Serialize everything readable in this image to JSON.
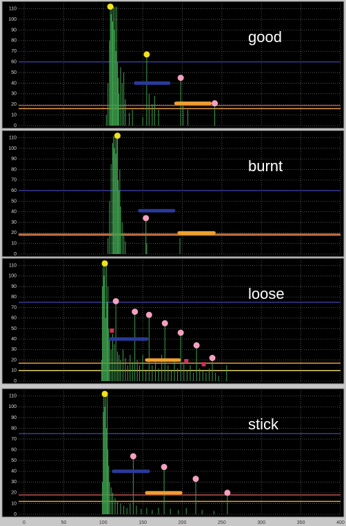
{
  "chart_data": [
    {
      "type": "stem",
      "label": "good",
      "xlim": [
        0,
        400
      ],
      "ylim": [
        0,
        115
      ],
      "xticks": [
        0,
        50,
        100,
        150,
        200,
        250,
        300,
        350,
        400
      ],
      "yticks": [
        0,
        10,
        20,
        30,
        40,
        50,
        60,
        70,
        80,
        90,
        100,
        110
      ],
      "grid": true,
      "spectrum": {
        "color": "#3fa24f",
        "x": [
          104,
          106,
          108,
          109,
          110,
          111,
          112,
          113,
          114,
          115,
          116,
          117,
          118,
          119,
          120,
          122,
          124,
          126,
          128,
          133,
          137,
          150,
          155,
          158,
          162,
          165,
          170,
          198,
          201,
          207,
          241
        ],
        "values": [
          10,
          40,
          80,
          112,
          105,
          112,
          98,
          112,
          90,
          112,
          70,
          112,
          60,
          45,
          30,
          55,
          40,
          50,
          25,
          12,
          15,
          8,
          67,
          30,
          20,
          28,
          15,
          45,
          22,
          15,
          21
        ]
      },
      "peaks": {
        "x": [
          109,
          155,
          198,
          241
        ],
        "values": [
          112,
          67,
          45,
          21
        ],
        "colors": [
          "#f2e21a",
          "#f2e21a",
          "#f4a0c0",
          "#f4a0c0"
        ]
      },
      "hlines": [
        {
          "value": 60,
          "color": "#3a3a9a"
        },
        {
          "value": 19,
          "color": "#c0504d"
        },
        {
          "value": 16,
          "color": "#e8a040"
        }
      ],
      "bands": [
        {
          "x": [
            141,
            183
          ],
          "value": 40,
          "color": "#2a3a9a"
        },
        {
          "x": [
            192,
            235
          ],
          "value": 21,
          "color": "#f0a030"
        }
      ]
    },
    {
      "type": "stem",
      "label": "burnt",
      "xlim": [
        0,
        400
      ],
      "ylim": [
        0,
        115
      ],
      "xticks": [
        0,
        50,
        100,
        150,
        200,
        250,
        300,
        350,
        400
      ],
      "yticks": [
        0,
        10,
        20,
        30,
        40,
        50,
        60,
        70,
        80,
        90,
        100,
        110
      ],
      "grid": true,
      "spectrum": {
        "color": "#3fa24f",
        "x": [
          106,
          108,
          110,
          112,
          113,
          114,
          115,
          116,
          117,
          118,
          119,
          120,
          121,
          122,
          124,
          126,
          128,
          154,
          155,
          197
        ],
        "values": [
          15,
          50,
          85,
          105,
          112,
          100,
          112,
          95,
          112,
          112,
          70,
          60,
          80,
          45,
          30,
          20,
          12,
          34,
          10,
          15
        ]
      },
      "peaks": {
        "x": [
          118,
          154
        ],
        "values": [
          112,
          34
        ],
        "colors": [
          "#f2e21a",
          "#f4a0c0"
        ]
      },
      "hlines": [
        {
          "value": 60,
          "color": "#3a3a9a"
        },
        {
          "value": 19,
          "color": "#c0504d"
        },
        {
          "value": 18,
          "color": "#e8a040"
        }
      ],
      "bands": [
        {
          "x": [
            146,
            189
          ],
          "value": 41,
          "color": "#2a3a9a"
        },
        {
          "x": [
            196,
            240
          ],
          "value": 20,
          "color": "#f0a030"
        }
      ]
    },
    {
      "type": "stem",
      "label": "loose",
      "xlim": [
        0,
        400
      ],
      "ylim": [
        0,
        115
      ],
      "xticks": [
        0,
        50,
        100,
        150,
        200,
        250,
        300,
        350,
        400
      ],
      "yticks": [
        0,
        10,
        20,
        30,
        40,
        50,
        60,
        70,
        80,
        90,
        100,
        110
      ],
      "grid": true,
      "spectrum": {
        "color": "#3fa24f",
        "x": [
          98,
          99,
          100,
          101,
          102,
          103,
          104,
          105,
          106,
          107,
          108,
          110,
          112,
          114,
          116,
          118,
          120,
          122,
          125,
          128,
          131,
          134,
          137,
          140,
          143,
          146,
          150,
          154,
          158,
          162,
          166,
          170,
          174,
          178,
          182,
          186,
          190,
          194,
          198,
          202,
          206,
          210,
          214,
          218,
          222,
          226,
          230,
          234,
          238,
          242,
          246,
          256
        ],
        "values": [
          20,
          90,
          112,
          100,
          112,
          60,
          112,
          75,
          90,
          50,
          40,
          30,
          45,
          35,
          76,
          28,
          25,
          20,
          30,
          22,
          15,
          25,
          18,
          66,
          20,
          15,
          25,
          10,
          63,
          15,
          20,
          12,
          25,
          55,
          15,
          10,
          20,
          12,
          46,
          18,
          10,
          15,
          8,
          34,
          12,
          10,
          8,
          12,
          22,
          8,
          5,
          15
        ]
      },
      "peaks": {
        "x": [
          102,
          116,
          140,
          158,
          178,
          198,
          218,
          238
        ],
        "values": [
          112,
          76,
          66,
          63,
          55,
          46,
          34,
          22
        ],
        "colors": [
          "#f2e21a",
          "#f4a0c0",
          "#f4a0c0",
          "#f4a0c0",
          "#f4a0c0",
          "#f4a0c0",
          "#f4a0c0",
          "#f4a0c0"
        ]
      },
      "minor_peaks": {
        "x": [
          111,
          205,
          227
        ],
        "values": [
          48,
          19,
          16
        ],
        "color": "#d0305a"
      },
      "hlines": [
        {
          "value": 75,
          "color": "#3a3a9a"
        },
        {
          "value": 17,
          "color": "#e8a040"
        },
        {
          "value": 10,
          "color": "#e0d060"
        }
      ],
      "bands": [
        {
          "x": [
            109,
            155
          ],
          "value": 40,
          "color": "#2a3a9a"
        },
        {
          "x": [
            155,
            196
          ],
          "value": 20,
          "color": "#f0a030"
        }
      ]
    },
    {
      "type": "stem",
      "label": "stick",
      "xlim": [
        0,
        400
      ],
      "ylim": [
        0,
        115
      ],
      "xticks": [
        0,
        50,
        100,
        150,
        200,
        250,
        300,
        350,
        400
      ],
      "yticks": [
        0,
        10,
        20,
        30,
        40,
        50,
        60,
        70,
        80,
        90,
        100,
        110
      ],
      "grid": true,
      "xtick_labels": true,
      "spectrum": {
        "color": "#3fa24f",
        "x": [
          99,
          100,
          101,
          102,
          103,
          104,
          105,
          106,
          107,
          108,
          110,
          112,
          115,
          118,
          122,
          126,
          130,
          134,
          138,
          142,
          148,
          155,
          162,
          170,
          177,
          185,
          195,
          205,
          217,
          225,
          240,
          257
        ],
        "values": [
          30,
          95,
          112,
          100,
          112,
          80,
          112,
          60,
          45,
          30,
          25,
          20,
          15,
          12,
          10,
          8,
          6,
          10,
          54,
          8,
          5,
          6,
          4,
          6,
          44,
          5,
          4,
          6,
          33,
          4,
          3,
          20
        ]
      },
      "peaks": {
        "x": [
          102,
          138,
          177,
          217,
          257
        ],
        "values": [
          112,
          54,
          44,
          33,
          20
        ],
        "colors": [
          "#f2e21a",
          "#f4a0c0",
          "#f4a0c0",
          "#f4a0c0",
          "#f4a0c0"
        ]
      },
      "hlines": [
        {
          "value": 75,
          "color": "#3a3a9a"
        },
        {
          "value": 18,
          "color": "#c0504d"
        },
        {
          "value": 12,
          "color": "#e8a040"
        }
      ],
      "bands": [
        {
          "x": [
            113,
            157
          ],
          "value": 40,
          "color": "#2a3a9a"
        },
        {
          "x": [
            155,
            198
          ],
          "value": 20,
          "color": "#f0a030"
        }
      ]
    }
  ]
}
